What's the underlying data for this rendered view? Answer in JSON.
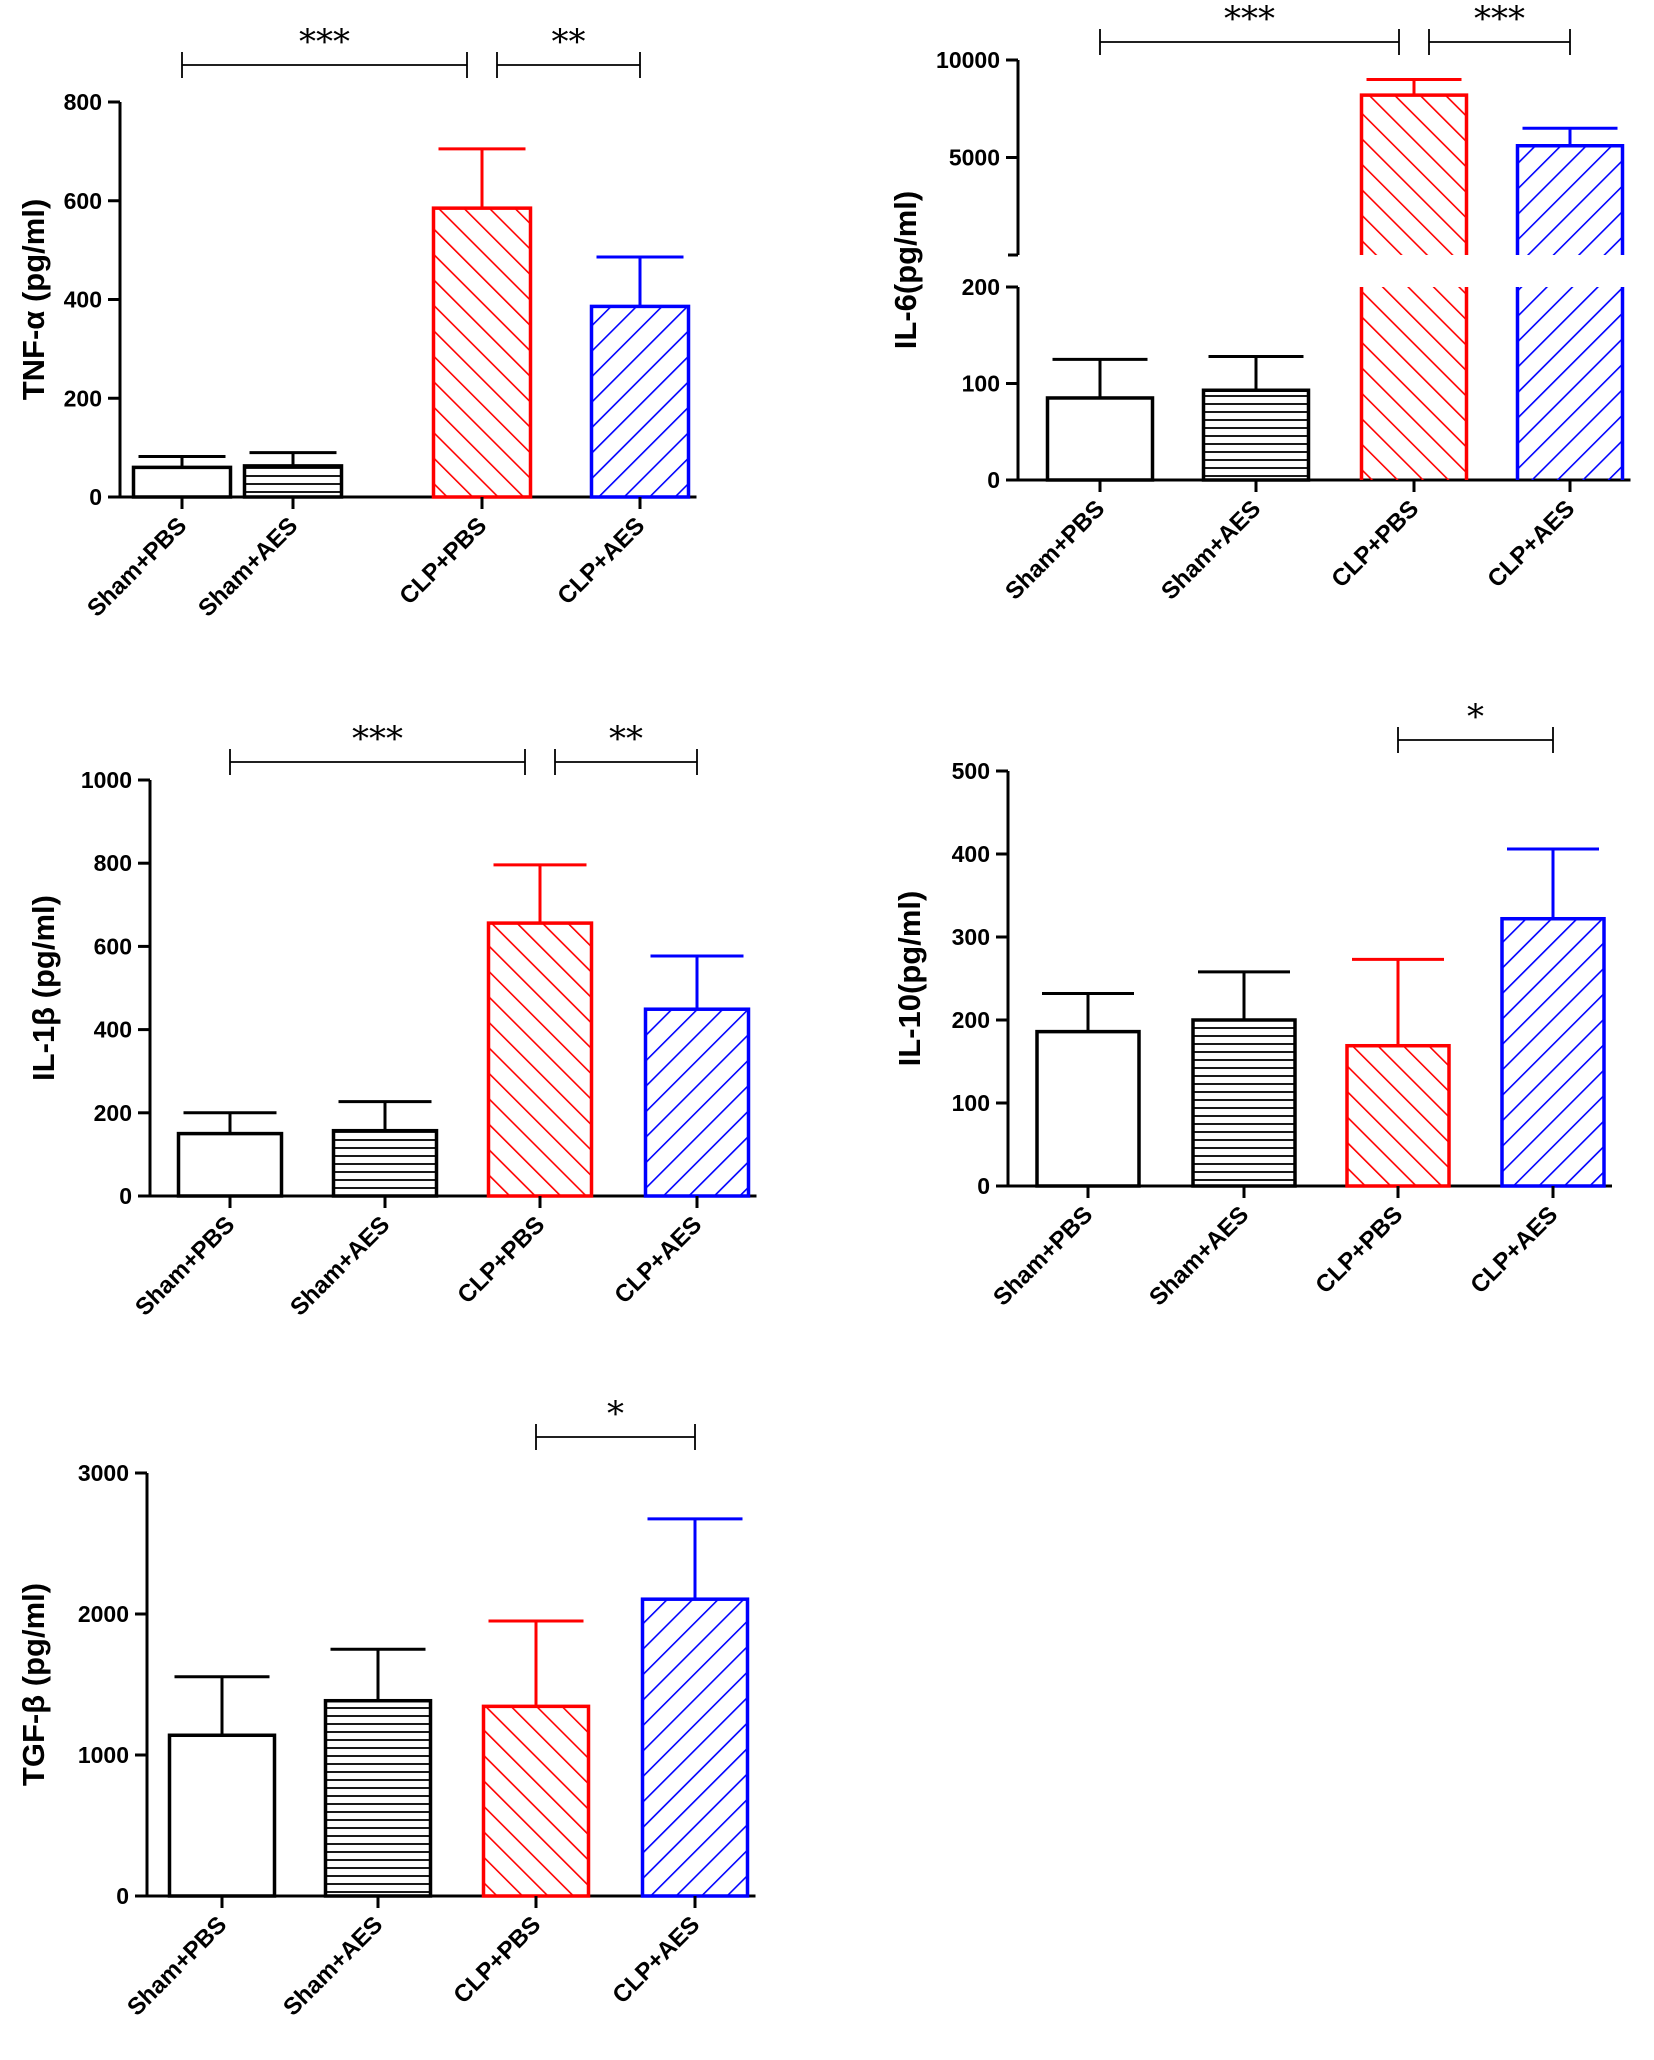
{
  "figure": {
    "colors": {
      "axis": "#000000",
      "sham": "#000000",
      "clp_pbs": "#ff0000",
      "clp_aes": "#0000ff"
    }
  },
  "chart_data": [
    {
      "type": "bar",
      "id": "tnf",
      "ylabel": "TNF-α (pg/ml)",
      "categories": [
        "Sham+PBS",
        "Sham+AES",
        "CLP+PBS",
        "CLP+AES"
      ],
      "values": [
        60,
        63,
        585,
        386
      ],
      "errors": [
        22,
        27,
        120,
        100
      ],
      "patterns": [
        "none",
        "horizontal",
        "diag-back",
        "diag-fwd"
      ],
      "colors": [
        "#000000",
        "#000000",
        "#ff0000",
        "#0000ff"
      ],
      "ylim": [
        0,
        800
      ],
      "yticks": [
        0,
        200,
        400,
        600,
        800
      ],
      "significance": [
        {
          "from": 0,
          "to": 2,
          "label": "***"
        },
        {
          "from": 2,
          "to": 3,
          "label": "**"
        }
      ]
    },
    {
      "type": "bar",
      "id": "il6",
      "ylabel": "IL-6(pg/ml)",
      "axis_break": true,
      "categories": [
        "Sham+PBS",
        "Sham+AES",
        "CLP+PBS",
        "CLP+AES"
      ],
      "values": [
        85,
        93,
        8200,
        5600
      ],
      "errors": [
        40,
        35,
        800,
        900
      ],
      "patterns": [
        "none",
        "horizontal",
        "diag-back",
        "diag-fwd"
      ],
      "colors": [
        "#000000",
        "#000000",
        "#ff0000",
        "#0000ff"
      ],
      "ylim": [
        0,
        10000
      ],
      "yticks": [
        0,
        100,
        200,
        5000,
        10000
      ],
      "significance": [
        {
          "from": 0,
          "to": 2,
          "label": "***"
        },
        {
          "from": 2,
          "to": 3,
          "label": "***"
        }
      ]
    },
    {
      "type": "bar",
      "id": "il1b",
      "ylabel": "IL-1β (pg/ml)",
      "categories": [
        "Sham+PBS",
        "Sham+AES",
        "CLP+PBS",
        "CLP+AES"
      ],
      "values": [
        150,
        157,
        656,
        449
      ],
      "errors": [
        50,
        70,
        140,
        128
      ],
      "patterns": [
        "none",
        "horizontal",
        "diag-back",
        "diag-fwd"
      ],
      "colors": [
        "#000000",
        "#000000",
        "#ff0000",
        "#0000ff"
      ],
      "ylim": [
        0,
        1000
      ],
      "yticks": [
        0,
        200,
        400,
        600,
        800,
        1000
      ],
      "significance": [
        {
          "from": 0,
          "to": 2,
          "label": "***"
        },
        {
          "from": 2,
          "to": 3,
          "label": "**"
        }
      ]
    },
    {
      "type": "bar",
      "id": "il10",
      "ylabel": "IL-10(pg/ml)",
      "categories": [
        "Sham+PBS",
        "Sham+AES",
        "CLP+PBS",
        "CLP+AES"
      ],
      "values": [
        186,
        200,
        169,
        322
      ],
      "errors": [
        46,
        58,
        104,
        84
      ],
      "patterns": [
        "none",
        "horizontal",
        "diag-back",
        "diag-fwd"
      ],
      "colors": [
        "#000000",
        "#000000",
        "#ff0000",
        "#0000ff"
      ],
      "ylim": [
        0,
        500
      ],
      "yticks": [
        0,
        100,
        200,
        300,
        400,
        500
      ],
      "significance": [
        {
          "from": 2,
          "to": 3,
          "label": "*"
        }
      ]
    },
    {
      "type": "bar",
      "id": "tgfb",
      "ylabel": "TGF-β (pg/ml)",
      "categories": [
        "Sham+PBS",
        "Sham+AES",
        "CLP+PBS",
        "CLP+AES"
      ],
      "values": [
        1140,
        1385,
        1345,
        2105
      ],
      "errors": [
        415,
        365,
        605,
        570
      ],
      "patterns": [
        "none",
        "horizontal",
        "diag-back",
        "diag-fwd"
      ],
      "colors": [
        "#000000",
        "#000000",
        "#ff0000",
        "#0000ff"
      ],
      "ylim": [
        0,
        3000
      ],
      "yticks": [
        0,
        1000,
        2000,
        3000
      ],
      "significance": [
        {
          "from": 2,
          "to": 3,
          "label": "*"
        }
      ]
    }
  ]
}
